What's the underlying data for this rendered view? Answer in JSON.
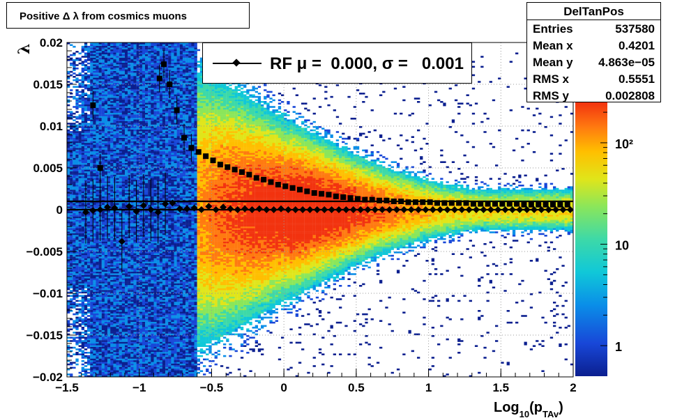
{
  "title": "Positive Δ λ from cosmics muons",
  "stats": {
    "name": "DelTanPos",
    "rows": [
      {
        "label": "Entries",
        "value": "537580"
      },
      {
        "label": "Mean x",
        "value": "0.4201"
      },
      {
        "label": "Mean y",
        "value": "4.863e−05"
      },
      {
        "label": "RMS x",
        "value": "0.5551"
      },
      {
        "label": "RMS y",
        "value": "0.002808"
      }
    ]
  },
  "legend": {
    "entry": "RF μ =  0.000, σ =   0.001"
  },
  "colors": {
    "palette": [
      "#0b1f8f",
      "#1847d8",
      "#0a8ee8",
      "#10c8d8",
      "#3dd9a8",
      "#8be65a",
      "#e0e51a",
      "#ffbf00",
      "#ff7a10",
      "#f2330f"
    ],
    "markers": "#000000",
    "grid": "#999999"
  },
  "chart_data": {
    "type": "heatmap",
    "title": "Positive Δ λ from cosmics muons",
    "xlabel": "Log10(pTAv)",
    "xlabel_main": "Log",
    "xlabel_sub1": "10",
    "xlabel_mid": "(p",
    "xlabel_sub2": "TAv",
    "xlabel_end": ")",
    "ylabel": "λ",
    "xlim": [
      -1.5,
      2.0
    ],
    "ylim": [
      -0.02,
      0.02
    ],
    "x_ticks": [
      "−1.5",
      "−1",
      "−0.5",
      "0",
      "0.5",
      "1",
      "1.5",
      "2"
    ],
    "x_tick_values": [
      -1.5,
      -1.0,
      -0.5,
      0.0,
      0.5,
      1.0,
      1.5,
      2.0
    ],
    "y_ticks": [
      "−0.02",
      "−0.015",
      "−0.01",
      "−0.005",
      "0",
      "0.005",
      "0.01",
      "0.015",
      "0.02"
    ],
    "y_tick_values": [
      -0.02,
      -0.015,
      -0.01,
      -0.005,
      0.0,
      0.005,
      0.01,
      0.015,
      0.02
    ],
    "z_scale": "log",
    "z_ticks": [
      "1",
      "10",
      "10²"
    ],
    "z_tick_values": [
      1,
      10,
      100
    ],
    "grid": true,
    "density_description": "counts peak near x≈0.0–0.3, y≈0; spread in y narrows with increasing x",
    "series": [
      {
        "name": "sigma",
        "marker": "square",
        "x": [
          -1.32,
          -1.27,
          -0.86,
          -0.83,
          -0.79,
          -0.74,
          -0.69,
          -0.64,
          -0.59,
          -0.54,
          -0.49,
          -0.44,
          -0.39,
          -0.34,
          -0.29,
          -0.24,
          -0.19,
          -0.14,
          -0.09,
          -0.04,
          0.01,
          0.06,
          0.11,
          0.16,
          0.21,
          0.26,
          0.31,
          0.36,
          0.41,
          0.46,
          0.51,
          0.56,
          0.61,
          0.66,
          0.71,
          0.76,
          0.81,
          0.86,
          0.91,
          0.96,
          1.01,
          1.06,
          1.11,
          1.16,
          1.21,
          1.26,
          1.31,
          1.36,
          1.41,
          1.46,
          1.51,
          1.56,
          1.61,
          1.66,
          1.71,
          1.76,
          1.81,
          1.86,
          1.91,
          1.96
        ],
        "y": [
          0.0125,
          0.005,
          0.0157,
          0.0174,
          0.015,
          0.0119,
          0.0086,
          0.0074,
          0.0069,
          0.0064,
          0.0059,
          0.0054,
          0.0051,
          0.0048,
          0.0045,
          0.0042,
          0.0038,
          0.0036,
          0.0033,
          0.003,
          0.0028,
          0.0026,
          0.0024,
          0.0022,
          0.002,
          0.0019,
          0.0018,
          0.0016,
          0.0015,
          0.0014,
          0.0013,
          0.0012,
          0.0012,
          0.0011,
          0.0011,
          0.001,
          0.001,
          0.0009,
          0.0009,
          0.0009,
          0.0009,
          0.0008,
          0.0008,
          0.0008,
          0.0008,
          0.0008,
          0.0007,
          0.0007,
          0.0007,
          0.0007,
          0.0007,
          0.0007,
          0.0007,
          0.0006,
          0.0006,
          0.0006,
          0.0006,
          0.0006,
          0.0006,
          0.0006
        ]
      },
      {
        "name": "mean",
        "marker": "diamond",
        "x": [
          -1.37,
          -1.32,
          -1.27,
          -1.22,
          -1.17,
          -1.12,
          -1.07,
          -1.02,
          -0.97,
          -0.92,
          -0.87,
          -0.82,
          -0.77,
          -0.72,
          -0.67,
          -0.62,
          -0.57,
          -0.52,
          -0.47,
          -0.42,
          -0.37,
          -0.32,
          -0.27,
          -0.22,
          -0.17,
          -0.12,
          -0.07,
          -0.02,
          0.03,
          0.08,
          0.13,
          0.18,
          0.23,
          0.28,
          0.33,
          0.38,
          0.43,
          0.48,
          0.53,
          0.58,
          0.63,
          0.68,
          0.73,
          0.78,
          0.83,
          0.88,
          0.93,
          0.98,
          1.03,
          1.08,
          1.13,
          1.18,
          1.23,
          1.28,
          1.33,
          1.38,
          1.43,
          1.48,
          1.53,
          1.58,
          1.63,
          1.68,
          1.73,
          1.78,
          1.83,
          1.88,
          1.93,
          1.98
        ],
        "y": [
          -0.0003,
          -0.0001,
          0.0,
          0.0003,
          0.0002,
          -0.0038,
          0.0004,
          -0.0002,
          0.0005,
          0.0,
          -0.0003,
          0.0007,
          0.0008,
          0.0001,
          0.0001,
          0.0002,
          0.0,
          0.0004,
          0.0,
          0.0003,
          0.0001,
          0.0,
          0.0001,
          0.0,
          0.0001,
          0.0,
          0.0,
          0.0001,
          0.0,
          0.0,
          0.0,
          0.0,
          0.0,
          0.0,
          0.0,
          0.0,
          0.0,
          0.0,
          0.0,
          0.0,
          0.0,
          0.0,
          0.0,
          0.0,
          0.0,
          0.0,
          0.0,
          0.0,
          0.0,
          0.0,
          0.0,
          0.0,
          0.0,
          0.0,
          0.0,
          0.0,
          0.0,
          0.0,
          0.0,
          0.0,
          0.0,
          0.0,
          0.0,
          0.0,
          0.0,
          0.0,
          0.0,
          0.0
        ]
      }
    ],
    "reference_lines_y": [
      0.001,
      0.0
    ]
  }
}
